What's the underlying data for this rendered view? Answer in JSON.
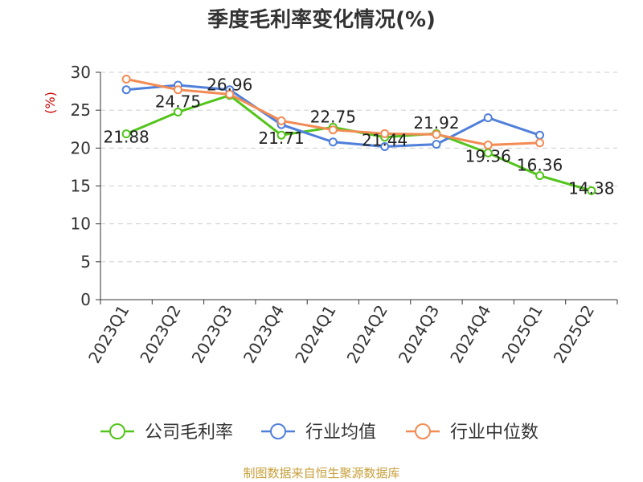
{
  "chart_data": {
    "type": "line",
    "title": "季度毛利率变化情况(%)",
    "ylabel": "(%)",
    "xlabel": "",
    "ylim": [
      0,
      30
    ],
    "yticks": [
      0,
      5,
      10,
      15,
      20,
      25,
      30
    ],
    "grid": true,
    "legend_position": "bottom",
    "categories": [
      "2023Q1",
      "2023Q2",
      "2023Q3",
      "2023Q4",
      "2024Q1",
      "2024Q2",
      "2024Q3",
      "2024Q4",
      "2025Q1",
      "2025Q2"
    ],
    "series": [
      {
        "name": "公司毛利率",
        "color": "#52c41a",
        "show_labels": true,
        "values": [
          21.88,
          24.75,
          26.96,
          21.71,
          22.75,
          21.44,
          21.92,
          19.36,
          16.36,
          14.38
        ]
      },
      {
        "name": "行业均值",
        "color": "#4f7fdb",
        "show_labels": false,
        "values": [
          27.7,
          28.3,
          27.7,
          23.1,
          20.8,
          20.2,
          20.5,
          24.0,
          21.7,
          null
        ]
      },
      {
        "name": "行业中位数",
        "color": "#f28b54",
        "show_labels": false,
        "values": [
          29.1,
          27.7,
          27.1,
          23.6,
          22.4,
          21.9,
          21.8,
          20.4,
          20.7,
          null
        ]
      }
    ],
    "source": "制图数据来自恒生聚源数据库"
  }
}
